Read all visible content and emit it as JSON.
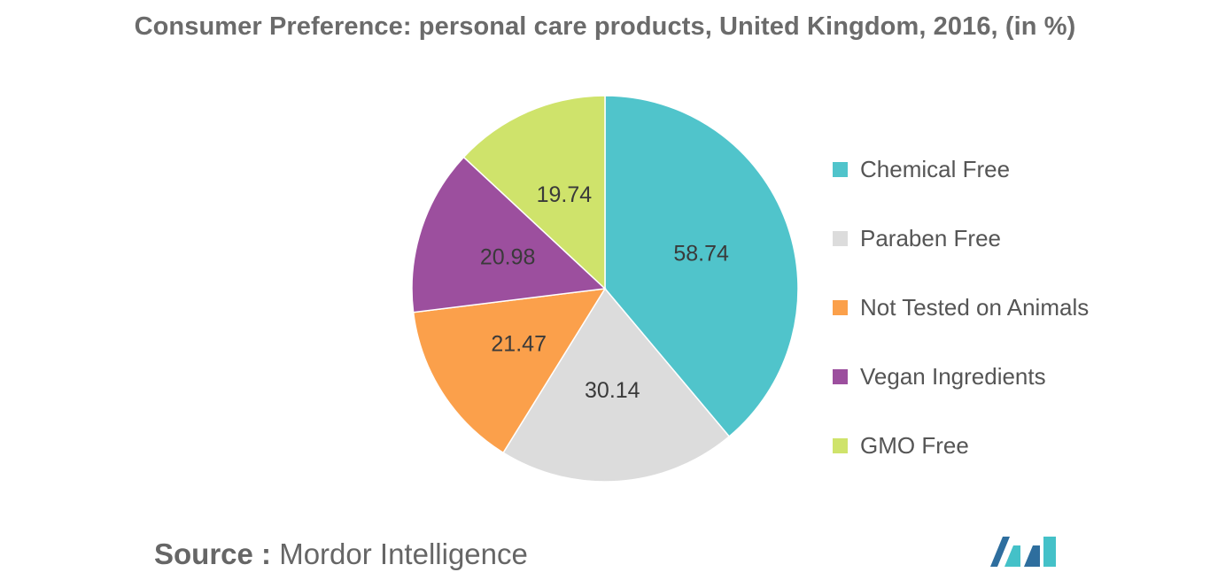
{
  "title": "Consumer Preference: personal care products, United Kingdom, 2016, (in %)",
  "chart_data": {
    "type": "pie",
    "title": "Consumer Preference: personal care products, United Kingdom, 2016, (in %)",
    "legend_position": "right",
    "slices": [
      {
        "label": "Chemical Free",
        "value": 58.74,
        "color": "#50C4CB"
      },
      {
        "label": "Paraben Free",
        "value": 30.14,
        "color": "#DCDCDC"
      },
      {
        "label": "Not Tested on Animals",
        "value": 21.47,
        "color": "#FBA04B"
      },
      {
        "label": "Vegan Ingredients",
        "value": 20.98,
        "color": "#9C4F9E"
      },
      {
        "label": "GMO Free",
        "value": 19.74,
        "color": "#CFE36B"
      }
    ]
  },
  "source": {
    "prefix": "Source :",
    "name": "Mordor Intelligence"
  },
  "logo": {
    "icon": "mordor-intelligence-logo",
    "colors": [
      "#2E6E9E",
      "#44C1C8"
    ]
  }
}
